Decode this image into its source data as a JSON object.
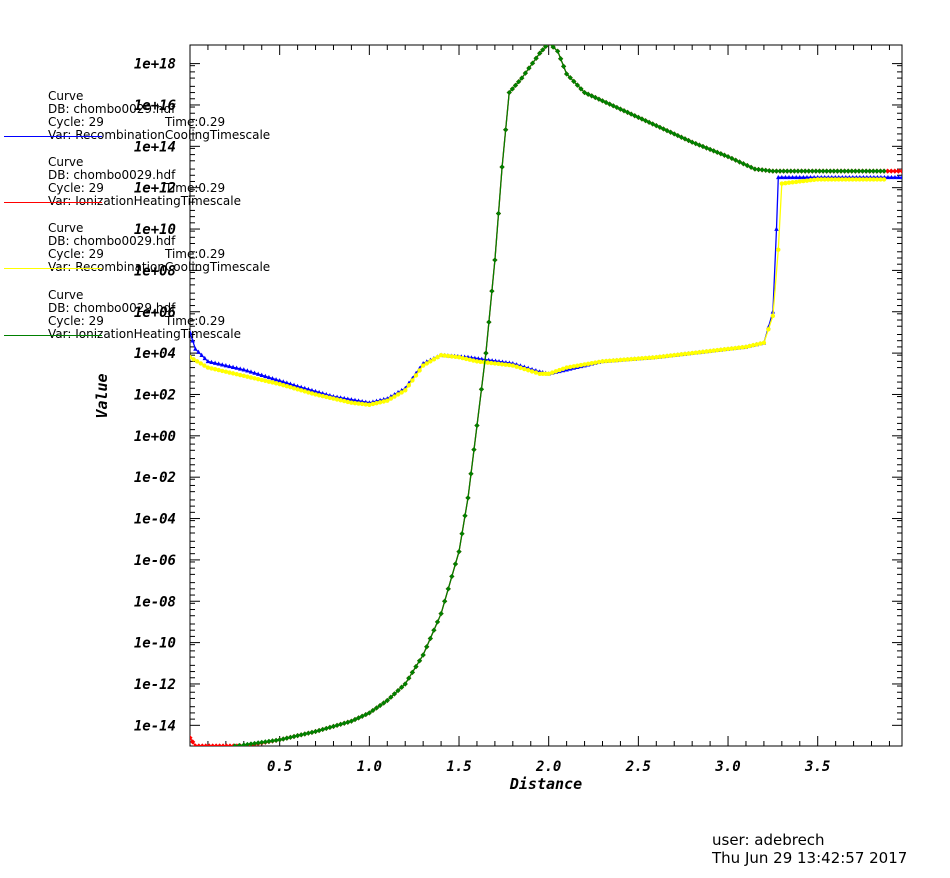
{
  "chart_data": {
    "type": "line",
    "xlabel": "Distance",
    "ylabel": "Value",
    "y_scale": "log10",
    "xlim": [
      0.0,
      3.97
    ],
    "ylim_exp": [
      -15,
      18.9
    ],
    "x_ticks": [
      "0.5",
      "1.0",
      "1.5",
      "2.0",
      "2.5",
      "3.0",
      "3.5"
    ],
    "x_tick_values": [
      0.5,
      1.0,
      1.5,
      2.0,
      2.5,
      3.0,
      3.5
    ],
    "y_ticks": [
      "1e+18",
      "1e+16",
      "1e+14",
      "1e+12",
      "1e+10",
      "1e+08",
      "1e+06",
      "1e+04",
      "1e+02",
      "1e+00",
      "1e-02",
      "1e-04",
      "1e-06",
      "1e-08",
      "1e-10",
      "1e-12",
      "1e-14"
    ],
    "y_tick_exponents": [
      18,
      16,
      14,
      12,
      10,
      8,
      6,
      4,
      2,
      0,
      -2,
      -4,
      -6,
      -8,
      -10,
      -12,
      -14
    ],
    "grid": false,
    "series": [
      {
        "name": "RecombinationCoolingTimescale",
        "color": "#0000ff",
        "marker": "triangle",
        "log10_points": [
          [
            0.0,
            5.0
          ],
          [
            0.03,
            4.2
          ],
          [
            0.1,
            3.6
          ],
          [
            0.3,
            3.2
          ],
          [
            0.6,
            2.4
          ],
          [
            0.8,
            1.9
          ],
          [
            1.0,
            1.6
          ],
          [
            1.1,
            1.8
          ],
          [
            1.2,
            2.3
          ],
          [
            1.3,
            3.5
          ],
          [
            1.4,
            3.9
          ],
          [
            1.55,
            3.8
          ],
          [
            1.8,
            3.5
          ],
          [
            1.95,
            3.1
          ],
          [
            2.0,
            3.0
          ],
          [
            2.1,
            3.2
          ],
          [
            2.3,
            3.6
          ],
          [
            2.6,
            3.8
          ],
          [
            2.9,
            4.1
          ],
          [
            3.1,
            4.3
          ],
          [
            3.2,
            4.5
          ],
          [
            3.25,
            6.0
          ],
          [
            3.27,
            10.0
          ],
          [
            3.28,
            12.5
          ],
          [
            3.5,
            12.5
          ],
          [
            3.97,
            12.5
          ]
        ]
      },
      {
        "name": "IonizationHeatingTimescale",
        "color": "#ff0000",
        "marker": "diamond",
        "log10_points": [
          [
            0.0,
            -14.6
          ],
          [
            0.03,
            -15.0
          ],
          [
            0.3,
            -15.0
          ],
          [
            0.5,
            -14.7
          ],
          [
            0.7,
            -14.3
          ],
          [
            0.9,
            -13.8
          ],
          [
            1.0,
            -13.4
          ],
          [
            1.1,
            -12.8
          ],
          [
            1.2,
            -12.0
          ],
          [
            1.3,
            -10.6
          ],
          [
            1.4,
            -8.6
          ],
          [
            1.5,
            -5.6
          ],
          [
            1.55,
            -3.0
          ],
          [
            1.6,
            0.5
          ],
          [
            1.65,
            4.0
          ],
          [
            1.7,
            8.5
          ],
          [
            1.74,
            13.0
          ],
          [
            1.78,
            16.6
          ],
          [
            1.85,
            17.3
          ],
          [
            1.95,
            18.5
          ],
          [
            2.0,
            19.0
          ],
          [
            2.05,
            18.6
          ],
          [
            2.1,
            17.5
          ],
          [
            2.2,
            16.6
          ],
          [
            2.4,
            15.8
          ],
          [
            2.6,
            15.0
          ],
          [
            2.8,
            14.2
          ],
          [
            3.0,
            13.5
          ],
          [
            3.15,
            12.9
          ],
          [
            3.25,
            12.8
          ],
          [
            3.97,
            12.8
          ]
        ]
      },
      {
        "name": "RecombinationCoolingTimescale",
        "color": "#ffff00",
        "marker": "circle",
        "log10_points": [
          [
            0.0,
            3.8
          ],
          [
            0.1,
            3.3
          ],
          [
            0.3,
            2.9
          ],
          [
            0.5,
            2.5
          ],
          [
            0.7,
            2.0
          ],
          [
            0.9,
            1.6
          ],
          [
            1.0,
            1.5
          ],
          [
            1.1,
            1.7
          ],
          [
            1.2,
            2.2
          ],
          [
            1.3,
            3.4
          ],
          [
            1.4,
            3.9
          ],
          [
            1.5,
            3.8
          ],
          [
            1.6,
            3.6
          ],
          [
            1.8,
            3.4
          ],
          [
            1.95,
            3.0
          ],
          [
            2.0,
            3.0
          ],
          [
            2.1,
            3.3
          ],
          [
            2.3,
            3.6
          ],
          [
            2.6,
            3.8
          ],
          [
            2.9,
            4.1
          ],
          [
            3.1,
            4.3
          ],
          [
            3.2,
            4.5
          ],
          [
            3.25,
            5.8
          ],
          [
            3.28,
            9.0
          ],
          [
            3.3,
            12.2
          ],
          [
            3.5,
            12.4
          ],
          [
            3.87,
            12.4
          ]
        ]
      },
      {
        "name": "IonizationHeatingTimescale",
        "color": "#008000",
        "marker": "diamond",
        "log10_points": [
          [
            0.25,
            -15.0
          ],
          [
            0.3,
            -14.95
          ],
          [
            0.5,
            -14.7
          ],
          [
            0.7,
            -14.3
          ],
          [
            0.9,
            -13.8
          ],
          [
            1.0,
            -13.4
          ],
          [
            1.1,
            -12.8
          ],
          [
            1.2,
            -12.0
          ],
          [
            1.3,
            -10.6
          ],
          [
            1.4,
            -8.6
          ],
          [
            1.5,
            -5.6
          ],
          [
            1.55,
            -3.0
          ],
          [
            1.6,
            0.5
          ],
          [
            1.65,
            4.0
          ],
          [
            1.7,
            8.5
          ],
          [
            1.74,
            13.0
          ],
          [
            1.78,
            16.6
          ],
          [
            1.85,
            17.3
          ],
          [
            1.95,
            18.5
          ],
          [
            2.0,
            19.0
          ],
          [
            2.05,
            18.6
          ],
          [
            2.1,
            17.5
          ],
          [
            2.2,
            16.6
          ],
          [
            2.4,
            15.8
          ],
          [
            2.6,
            15.0
          ],
          [
            2.8,
            14.2
          ],
          [
            3.0,
            13.5
          ],
          [
            3.15,
            12.9
          ],
          [
            3.25,
            12.8
          ],
          [
            3.87,
            12.8
          ]
        ]
      }
    ]
  },
  "legend": [
    {
      "title": "Curve",
      "db": "DB: chombo0029.hdf",
      "cycle": "Cycle: 29",
      "time": "Time:0.29",
      "var": "Var: RecombinationCoolingTimescale",
      "color": "#0000ff"
    },
    {
      "title": "Curve",
      "db": "DB: chombo0029.hdf",
      "cycle": "Cycle: 29",
      "time": "Time:0.29",
      "var": "Var: IonizationHeatingTimescale",
      "color": "#ff0000"
    },
    {
      "title": "Curve",
      "db": "DB: chombo0029.hdf",
      "cycle": "Cycle: 29",
      "time": "Time:0.29",
      "var": "Var: RecombinationCoolingTimescale",
      "color": "#ffff00"
    },
    {
      "title": "Curve",
      "db": "DB: chombo0029.hdf",
      "cycle": "Cycle: 29",
      "time": "Time:0.29",
      "var": "Var: IonizationHeatingTimescale",
      "color": "#008000"
    }
  ],
  "footer": {
    "user": "user: adebrech",
    "timestamp": "Thu Jun 29 13:42:57 2017"
  }
}
